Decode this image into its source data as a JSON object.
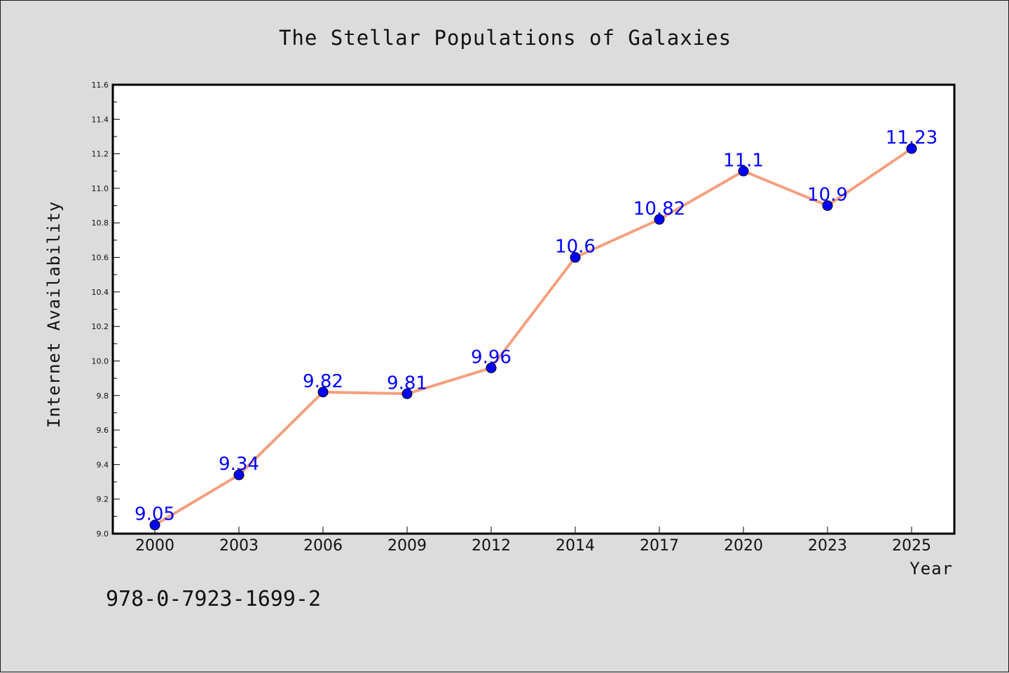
{
  "chart_data": {
    "type": "line",
    "title": "The Stellar Populations of Galaxies",
    "xlabel": "Year",
    "ylabel": "Internet Availability",
    "categories": [
      "2000",
      "2003",
      "2006",
      "2009",
      "2012",
      "2014",
      "2017",
      "2020",
      "2023",
      "2025"
    ],
    "series": [
      {
        "values": [
          9.05,
          9.34,
          9.82,
          9.81,
          9.96,
          10.6,
          10.82,
          11.1,
          10.9,
          11.23
        ],
        "labels": [
          "9.05",
          "9.34",
          "9.82",
          "9.81",
          "9.96",
          "10.6",
          "10.82",
          "11.1",
          "10.9",
          "11.23"
        ],
        "line_color": "#f4a07f",
        "marker_color": "#0000ff"
      }
    ],
    "ylim": [
      9.0,
      11.6
    ],
    "yticks": [
      "9.0",
      "9.2",
      "9.4",
      "9.6",
      "9.8",
      "10.0",
      "10.2",
      "10.4",
      "10.6",
      "10.8",
      "11.0",
      "11.2",
      "11.4",
      "11.6"
    ],
    "grid": false,
    "legend": "none"
  },
  "annotation": {
    "isbn": "978-0-7923-1699-2"
  },
  "colors": {
    "background": "#dcdcdc",
    "plot_background": "#ffffff",
    "line": "#f4a07f",
    "marker": "#0000ff",
    "data_label": "#0000ff"
  }
}
